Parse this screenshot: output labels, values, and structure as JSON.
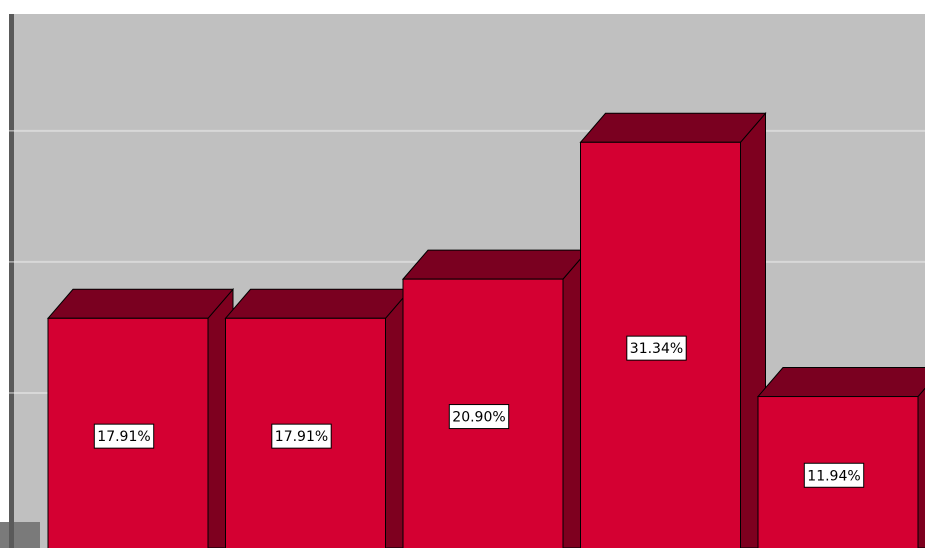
{
  "chart_data": {
    "type": "bar3d",
    "values": [
      17.91,
      17.91,
      20.9,
      31.34,
      11.94
    ],
    "value_labels": [
      "17.91%",
      "17.91%",
      "20.90%",
      "31.34%",
      "11.94%"
    ],
    "color": "#d40032",
    "ylim": [
      0,
      42.2
    ],
    "yticks": [
      10,
      20,
      30
    ],
    "grid": true
  }
}
